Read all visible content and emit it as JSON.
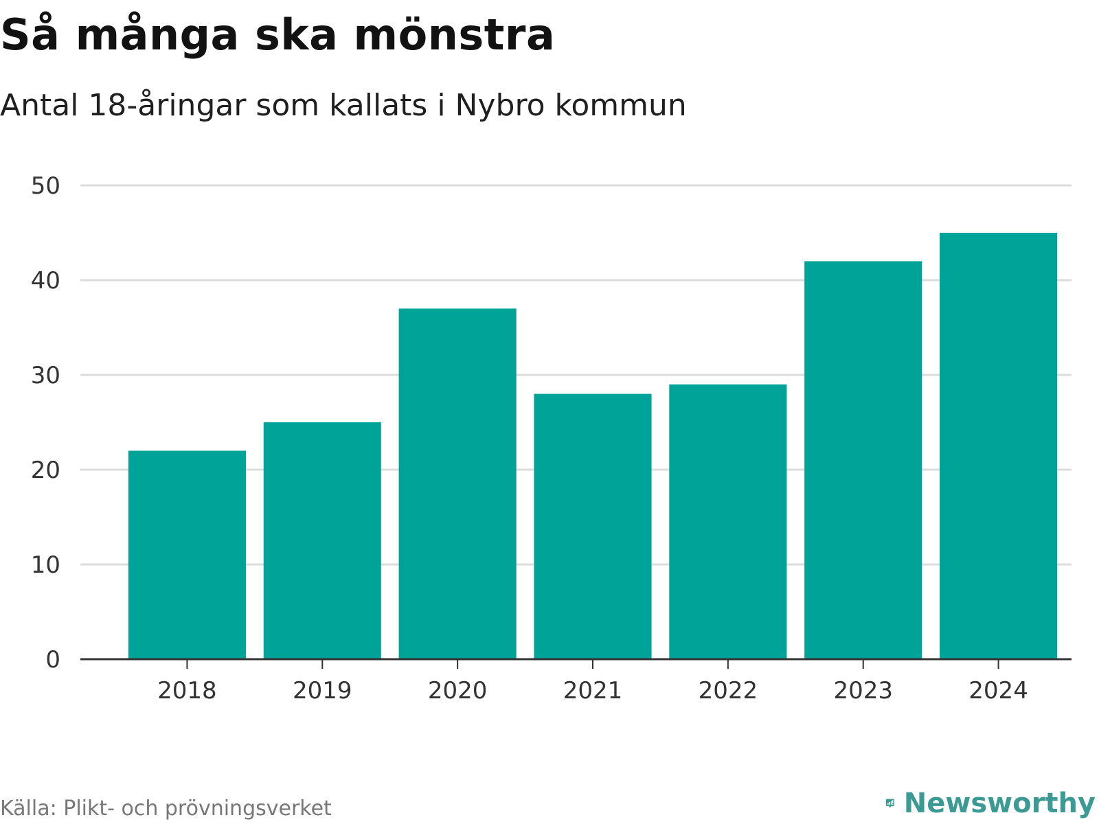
{
  "header": {
    "title": "Så många ska mönstra",
    "subtitle": "Antal 18-åringar som kallats i Nybro kommun"
  },
  "footer": {
    "source": "Källa: Plikt- och prövningsverket",
    "brand": "Newsworthy"
  },
  "colors": {
    "bar": "#00a398",
    "grid": "#dcdcdc",
    "axis": "#333333",
    "brand": "#3c9a94"
  },
  "chart_data": {
    "type": "bar",
    "title": "Så många ska mönstra",
    "subtitle": "Antal 18-åringar som kallats i Nybro kommun",
    "categories": [
      "2018",
      "2019",
      "2020",
      "2021",
      "2022",
      "2023",
      "2024"
    ],
    "values": [
      22,
      25,
      37,
      28,
      29,
      42,
      45
    ],
    "xlabel": "",
    "ylabel": "",
    "ylim": [
      0,
      50
    ],
    "yticks": [
      0,
      10,
      20,
      30,
      40,
      50
    ],
    "grid": true,
    "legend": "none"
  }
}
